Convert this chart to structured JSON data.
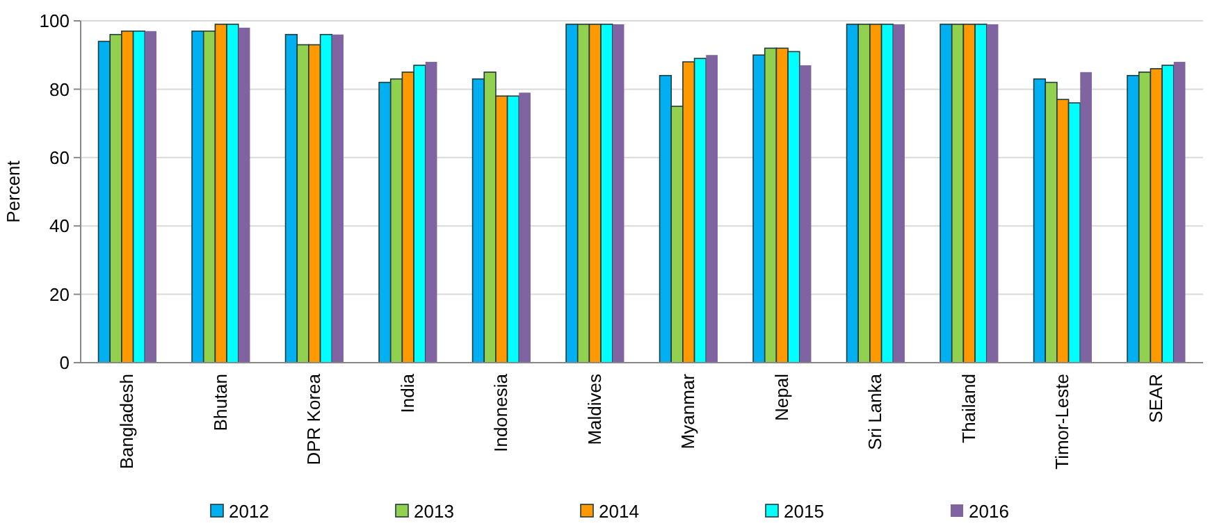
{
  "chart_data": {
    "type": "bar",
    "ylabel": "Percent",
    "categories": [
      "Bangladesh",
      "Bhutan",
      "DPR Korea",
      "India",
      "Indonesia",
      "Maldives",
      "Myanmar",
      "Nepal",
      "Sri Lanka",
      "Thailand",
      "Timor-Leste",
      "SEAR"
    ],
    "series": [
      {
        "name": "2012",
        "color": "#00b0f0",
        "values": [
          94,
          97,
          96,
          82,
          83,
          99,
          84,
          90,
          99,
          99,
          83,
          84
        ]
      },
      {
        "name": "2013",
        "color": "#92d050",
        "values": [
          96,
          97,
          93,
          83,
          85,
          99,
          75,
          92,
          99,
          99,
          82,
          85
        ]
      },
      {
        "name": "2014",
        "color": "#ff9900",
        "values": [
          97,
          99,
          93,
          85,
          78,
          99,
          88,
          92,
          99,
          99,
          77,
          86
        ]
      },
      {
        "name": "2015",
        "color": "#00ffff",
        "values": [
          97,
          99,
          96,
          87,
          78,
          99,
          89,
          91,
          99,
          99,
          76,
          87
        ]
      },
      {
        "name": "2016",
        "color": "#8064a2",
        "values": [
          97,
          98,
          96,
          88,
          79,
          99,
          90,
          87,
          99,
          99,
          85,
          88
        ]
      }
    ],
    "ylim": [
      0,
      100
    ],
    "yticks": [
      0,
      20,
      40,
      60,
      80,
      100
    ],
    "grid": "y",
    "legend": "bottom"
  }
}
